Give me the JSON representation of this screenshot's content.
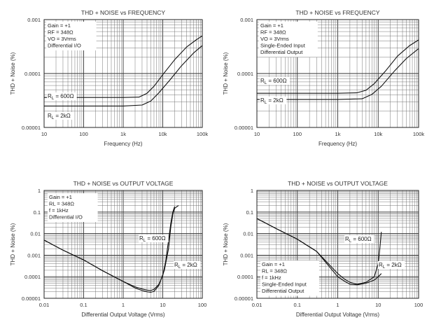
{
  "chart_data": [
    {
      "type": "line",
      "title": "THD + NOISE vs FREQUENCY",
      "xlabel": "Frequency (Hz)",
      "ylabel": "THD + Noise (%)",
      "xscale": "log",
      "yscale": "log",
      "xlim": [
        10,
        100000
      ],
      "ylim": [
        1e-05,
        0.001
      ],
      "x_ticks": [
        {
          "value": 10,
          "label": "10"
        },
        {
          "value": 100,
          "label": "100"
        },
        {
          "value": 1000,
          "label": "1k"
        },
        {
          "value": 10000,
          "label": "10k"
        },
        {
          "value": 100000,
          "label": "100k"
        }
      ],
      "y_ticks": [
        {
          "value": 1e-05,
          "label": "0.00001"
        },
        {
          "value": 0.0001,
          "label": "0.0001"
        },
        {
          "value": 0.001,
          "label": "0.001"
        }
      ],
      "grid": true,
      "conditions": [
        "Gain = +1",
        "RF = 348Ω",
        "VO = 3Vrms",
        "Differential I/O"
      ],
      "series": [
        {
          "name": "RL = 600Ω",
          "label_main": "R",
          "label_sub": "L",
          "label_rest": " = 600Ω",
          "x": [
            10,
            100,
            1000,
            2500,
            4000,
            6000,
            10000,
            20000,
            40000,
            70000,
            100000
          ],
          "y": [
            3.6e-05,
            3.6e-05,
            3.6e-05,
            3.65e-05,
            4.3e-05,
            5.8e-05,
            9.5e-05,
            0.00018,
            0.00031,
            0.00042,
            0.0005
          ]
        },
        {
          "name": "RL = 2kΩ",
          "label_main": "R",
          "label_sub": "L",
          "label_rest": " = 2kΩ",
          "x": [
            10,
            100,
            1000,
            3000,
            5000,
            8000,
            15000,
            30000,
            60000,
            100000
          ],
          "y": [
            2.5e-05,
            2.5e-05,
            2.5e-05,
            2.6e-05,
            3.1e-05,
            4.4e-05,
            7.5e-05,
            0.00014,
            0.00024,
            0.00033
          ]
        }
      ]
    },
    {
      "type": "line",
      "title": "THD + NOISE vs FREQUENCY",
      "xlabel": "Frequency (Hz)",
      "ylabel": "THD + Noise (%)",
      "xscale": "log",
      "yscale": "log",
      "xlim": [
        10,
        100000
      ],
      "ylim": [
        1e-05,
        0.001
      ],
      "x_ticks": [
        {
          "value": 10,
          "label": "10"
        },
        {
          "value": 100,
          "label": "100"
        },
        {
          "value": 1000,
          "label": "1k"
        },
        {
          "value": 10000,
          "label": "10k"
        },
        {
          "value": 100000,
          "label": "100k"
        }
      ],
      "y_ticks": [
        {
          "value": 1e-05,
          "label": "0.00001"
        },
        {
          "value": 0.0001,
          "label": "0.0001"
        },
        {
          "value": 0.001,
          "label": "0.001"
        }
      ],
      "grid": true,
      "conditions": [
        "Gain = +1",
        "RF = 348Ω",
        "VO = 3Vrms",
        "Single-Ended Input",
        "Differential Output"
      ],
      "series": [
        {
          "name": "RL = 600Ω",
          "label_main": "R",
          "label_sub": "L",
          "label_rest": " = 600Ω",
          "x": [
            10,
            1000,
            3000,
            5000,
            8000,
            15000,
            30000,
            60000,
            100000
          ],
          "y": [
            4.3e-05,
            4.3e-05,
            4.4e-05,
            4.9e-05,
            6.5e-05,
            0.00011,
            0.00021,
            0.00033,
            0.00042
          ]
        },
        {
          "name": "RL = 2kΩ",
          "label_main": "R",
          "label_sub": "L",
          "label_rest": " = 2kΩ",
          "x": [
            10,
            1000,
            4000,
            7000,
            12000,
            25000,
            50000,
            100000
          ],
          "y": [
            3.3e-05,
            3.3e-05,
            3.4e-05,
            4.1e-05,
            5.8e-05,
            0.00011,
            0.00019,
            0.00029
          ]
        }
      ]
    },
    {
      "type": "line",
      "title": "THD + NOISE  vs  OUTPUT VOLTAGE",
      "xlabel": "Differential Output Voltage (Vrms)",
      "ylabel": "THD + Noise (%)",
      "xscale": "log",
      "yscale": "log",
      "xlim": [
        0.01,
        100
      ],
      "ylim": [
        1e-05,
        1
      ],
      "x_ticks": [
        {
          "value": 0.01,
          "label": "0.01"
        },
        {
          "value": 0.1,
          "label": "0.1"
        },
        {
          "value": 1,
          "label": "1"
        },
        {
          "value": 10,
          "label": "10"
        },
        {
          "value": 100,
          "label": "100"
        }
      ],
      "y_ticks": [
        {
          "value": 1e-05,
          "label": "0.00001"
        },
        {
          "value": 0.0001,
          "label": "0.0001"
        },
        {
          "value": 0.001,
          "label": "0.001"
        },
        {
          "value": 0.01,
          "label": "0.01"
        },
        {
          "value": 0.1,
          "label": "0.1"
        },
        {
          "value": 1,
          "label": "1"
        }
      ],
      "grid": true,
      "conditions": [
        "Gain = +1",
        "RL = 348Ω",
        "f = 1kHz",
        "Differential I/O"
      ],
      "series": [
        {
          "name": "RL = 600Ω",
          "label_main": "R",
          "label_sub": "L",
          "label_rest": " = 600Ω",
          "x": [
            0.01,
            0.03,
            0.1,
            0.3,
            1,
            2,
            3,
            4,
            5,
            6,
            8,
            10,
            12,
            14,
            16,
            18,
            20
          ],
          "y": [
            0.005,
            0.0017,
            0.0006,
            0.00019,
            6e-05,
            3.4e-05,
            2.7e-05,
            2.4e-05,
            2.3e-05,
            2.6e-05,
            4.5e-05,
            0.00011,
            0.0006,
            0.005,
            0.03,
            0.1,
            0.18
          ]
        },
        {
          "name": "RL = 2kΩ",
          "label_main": "R",
          "label_sub": "L",
          "label_rest": " = 2kΩ",
          "x": [
            0.01,
            0.03,
            0.1,
            0.3,
            1,
            2,
            3,
            4,
            5,
            6,
            8,
            11,
            14,
            16,
            18,
            20,
            25
          ],
          "y": [
            0.005,
            0.0017,
            0.0006,
            0.00019,
            6e-05,
            3e-05,
            2.3e-05,
            2e-05,
            1.9e-05,
            2.1e-05,
            4e-05,
            0.0002,
            0.002,
            0.02,
            0.08,
            0.15,
            0.2
          ]
        }
      ]
    },
    {
      "type": "line",
      "title": "THD + NOISE  vs  OUTPUT VOLTAGE",
      "xlabel": "Differential Output Voltage (Vrms)",
      "ylabel": "THD + Noise (%)",
      "xscale": "log",
      "yscale": "log",
      "xlim": [
        0.01,
        100
      ],
      "ylim": [
        1e-05,
        1
      ],
      "x_ticks": [
        {
          "value": 0.01,
          "label": "0.01"
        },
        {
          "value": 0.1,
          "label": "0.1"
        },
        {
          "value": 1,
          "label": "1"
        },
        {
          "value": 10,
          "label": "10"
        },
        {
          "value": 100,
          "label": "100"
        }
      ],
      "y_ticks": [
        {
          "value": 1e-05,
          "label": "0.00001"
        },
        {
          "value": 0.0001,
          "label": "0.0001"
        },
        {
          "value": 0.001,
          "label": "0.001"
        },
        {
          "value": 0.01,
          "label": "0.01"
        },
        {
          "value": 0.1,
          "label": "0.1"
        },
        {
          "value": 1,
          "label": "1"
        }
      ],
      "grid": true,
      "conditions": [
        "Gain = +1",
        "RL = 348Ω",
        "f = 1kHz",
        "Single-Ended Input",
        "Differential Output"
      ],
      "series": [
        {
          "name": "RL = 600Ω",
          "label_main": "R",
          "label_sub": "L",
          "label_rest": " = 600Ω",
          "x": [
            0.01,
            0.03,
            0.1,
            0.3,
            1,
            1.5,
            2,
            3,
            5,
            8,
            10,
            11,
            12
          ],
          "y": [
            0.05,
            0.017,
            0.0055,
            0.0015,
            0.00014,
            7.5e-05,
            5.5e-05,
            4.5e-05,
            5.5e-05,
            0.0001,
            0.0004,
            0.002,
            0.012
          ]
        },
        {
          "name": "RL = 2kΩ",
          "label_main": "R",
          "label_sub": "L",
          "label_rest": " = 2kΩ",
          "x": [
            0.01,
            0.03,
            0.1,
            0.3,
            1,
            1.5,
            2,
            3,
            5,
            8,
            10,
            12
          ],
          "y": [
            0.05,
            0.017,
            0.0055,
            0.0015,
            0.0001,
            6e-05,
            4.5e-05,
            4.2e-05,
            5e-05,
            7e-05,
            0.0001,
            0.00014
          ]
        }
      ]
    }
  ]
}
